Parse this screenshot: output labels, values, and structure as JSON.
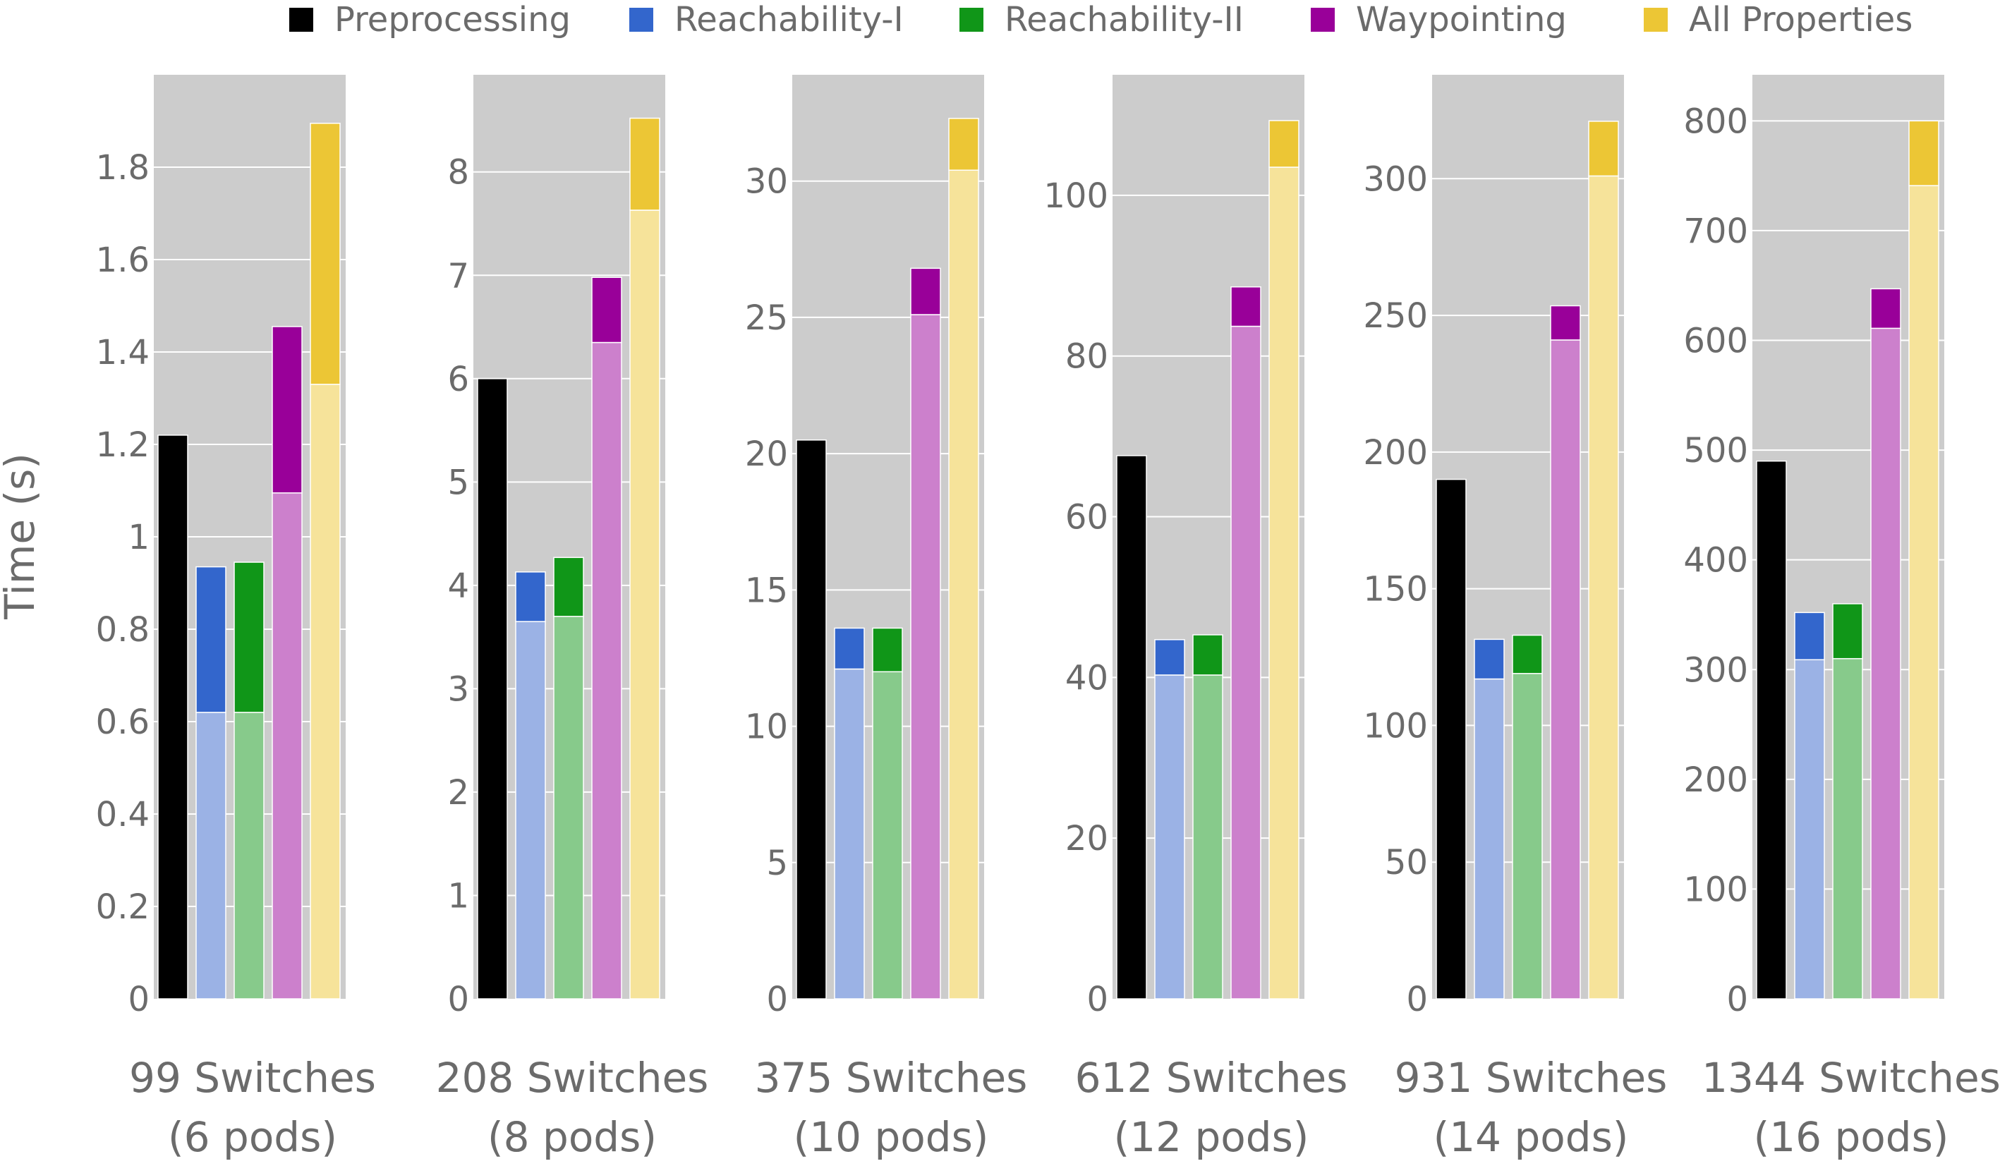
{
  "chart_data": {
    "type": "bar",
    "ylabel": "Time (s)",
    "legend": {
      "placement": "top",
      "entries": [
        {
          "name": "Preprocessing",
          "color": "#000000"
        },
        {
          "name": "Reachability-I",
          "color": "#3366cc"
        },
        {
          "name": "Reachability-II",
          "color": "#109618"
        },
        {
          "name": "Waypointing",
          "color": "#990099"
        },
        {
          "name": "All Properties",
          "color": "#ecc635"
        }
      ]
    },
    "series_colors": {
      "Preprocessing": {
        "base": "#000000",
        "top": "#000000"
      },
      "Reachability-I": {
        "base": "#9bb2e5",
        "top": "#3366cc"
      },
      "Reachability-II": {
        "base": "#87ca8b",
        "top": "#109618"
      },
      "Waypointing": {
        "base": "#cc80cc",
        "top": "#990099"
      },
      "All Properties": {
        "base": "#f6e39a",
        "top": "#ecc635"
      }
    },
    "panels": [
      {
        "category": "99 Switches",
        "subcategory": "(6 pods)",
        "ylim": [
          0,
          2.0
        ],
        "ticks": [
          0,
          0.2,
          0.4,
          0.6,
          0.8,
          1,
          1.2,
          1.4,
          1.6,
          1.8
        ],
        "tick_labels": [
          "0",
          "0.2",
          "0.4",
          "0.6",
          "0.8",
          "1",
          "1.2",
          "1.4",
          "1.6",
          "1.8"
        ],
        "bars": [
          {
            "series": "Preprocessing",
            "base": 1.22,
            "total": 1.22
          },
          {
            "series": "Reachability-I",
            "base": 0.62,
            "total": 0.935
          },
          {
            "series": "Reachability-II",
            "base": 0.62,
            "total": 0.945
          },
          {
            "series": "Waypointing",
            "base": 1.095,
            "total": 1.455
          },
          {
            "series": "All Properties",
            "base": 1.33,
            "total": 1.895
          }
        ]
      },
      {
        "category": "208 Switches",
        "subcategory": "(8 pods)",
        "ylim": [
          0,
          8.94
        ],
        "ticks": [
          0,
          1,
          2,
          3,
          4,
          5,
          6,
          7,
          8
        ],
        "tick_labels": [
          "0",
          "1",
          "2",
          "3",
          "4",
          "5",
          "6",
          "7",
          "8"
        ],
        "bars": [
          {
            "series": "Preprocessing",
            "base": 6.0,
            "total": 6.0
          },
          {
            "series": "Reachability-I",
            "base": 3.65,
            "total": 4.13
          },
          {
            "series": "Reachability-II",
            "base": 3.7,
            "total": 4.27
          },
          {
            "series": "Waypointing",
            "base": 6.35,
            "total": 6.98
          },
          {
            "series": "All Properties",
            "base": 7.63,
            "total": 8.52
          }
        ]
      },
      {
        "category": "375 Switches",
        "subcategory": "(10 pods)",
        "ylim": [
          0,
          33.9
        ],
        "ticks": [
          0,
          5,
          10,
          15,
          20,
          25,
          30
        ],
        "tick_labels": [
          "0",
          "5",
          "10",
          "15",
          "20",
          "25",
          "30"
        ],
        "bars": [
          {
            "series": "Preprocessing",
            "base": 20.5,
            "total": 20.5
          },
          {
            "series": "Reachability-I",
            "base": 12.1,
            "total": 13.6
          },
          {
            "series": "Reachability-II",
            "base": 12.0,
            "total": 13.6
          },
          {
            "series": "Waypointing",
            "base": 25.1,
            "total": 26.8
          },
          {
            "series": "All Properties",
            "base": 30.4,
            "total": 32.3
          }
        ]
      },
      {
        "category": "612 Switches",
        "subcategory": "(12 pods)",
        "ylim": [
          0,
          115.0
        ],
        "ticks": [
          0,
          20,
          40,
          60,
          80,
          100
        ],
        "tick_labels": [
          "0",
          "20",
          "40",
          "60",
          "80",
          "100"
        ],
        "bars": [
          {
            "series": "Preprocessing",
            "base": 67.6,
            "total": 67.6
          },
          {
            "series": "Reachability-I",
            "base": 40.3,
            "total": 44.7
          },
          {
            "series": "Reachability-II",
            "base": 40.3,
            "total": 45.3
          },
          {
            "series": "Waypointing",
            "base": 83.7,
            "total": 88.6
          },
          {
            "series": "All Properties",
            "base": 103.5,
            "total": 109.3
          }
        ]
      },
      {
        "category": "931 Switches",
        "subcategory": "(14 pods)",
        "ylim": [
          0,
          338.0
        ],
        "ticks": [
          0,
          50,
          100,
          150,
          200,
          250,
          300
        ],
        "tick_labels": [
          "0",
          "50",
          "100",
          "150",
          "200",
          "250",
          "300"
        ],
        "bars": [
          {
            "series": "Preprocessing",
            "base": 190.0,
            "total": 190.0
          },
          {
            "series": "Reachability-I",
            "base": 117.0,
            "total": 131.5
          },
          {
            "series": "Reachability-II",
            "base": 119.0,
            "total": 133.0
          },
          {
            "series": "Waypointing",
            "base": 241.0,
            "total": 253.5
          },
          {
            "series": "All Properties",
            "base": 301.0,
            "total": 321.0
          }
        ]
      },
      {
        "category": "1344 Switches",
        "subcategory": "(16 pods)",
        "ylim": [
          0,
          842.0
        ],
        "ticks": [
          0,
          100,
          200,
          300,
          400,
          500,
          600,
          700,
          800
        ],
        "tick_labels": [
          "0",
          "100",
          "200",
          "300",
          "400",
          "500",
          "600",
          "700",
          "800"
        ],
        "bars": [
          {
            "series": "Preprocessing",
            "base": 490.0,
            "total": 490.0
          },
          {
            "series": "Reachability-I",
            "base": 309.0,
            "total": 352.0
          },
          {
            "series": "Reachability-II",
            "base": 310.0,
            "total": 360.0
          },
          {
            "series": "Waypointing",
            "base": 611.0,
            "total": 647.0
          },
          {
            "series": "All Properties",
            "base": 741.0,
            "total": 800.0
          }
        ]
      }
    ]
  }
}
